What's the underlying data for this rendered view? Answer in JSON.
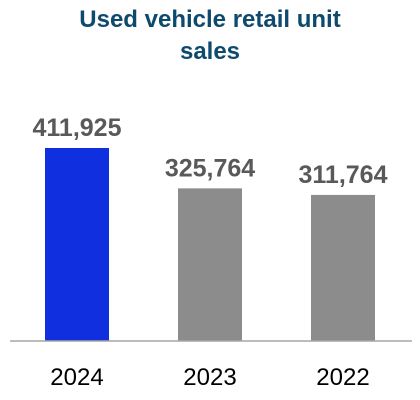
{
  "chart_data": {
    "type": "bar",
    "title": "Used vehicle retail unit sales",
    "title_lines": [
      "Used vehicle retail unit",
      "sales"
    ],
    "categories": [
      "2024",
      "2023",
      "2022"
    ],
    "values": [
      411925,
      325764,
      311764
    ],
    "value_labels": [
      "411,925",
      "325,764",
      "311,764"
    ],
    "colors": [
      "#1030e0",
      "#8c8c8c",
      "#8c8c8c"
    ],
    "axis_color": "#a6a6a6",
    "title_color": "#0e4a6e",
    "label_color": "#595959",
    "ylim": [
      0,
      411925
    ],
    "xlabel": "",
    "ylabel": "",
    "grid": false,
    "legend": "none"
  }
}
